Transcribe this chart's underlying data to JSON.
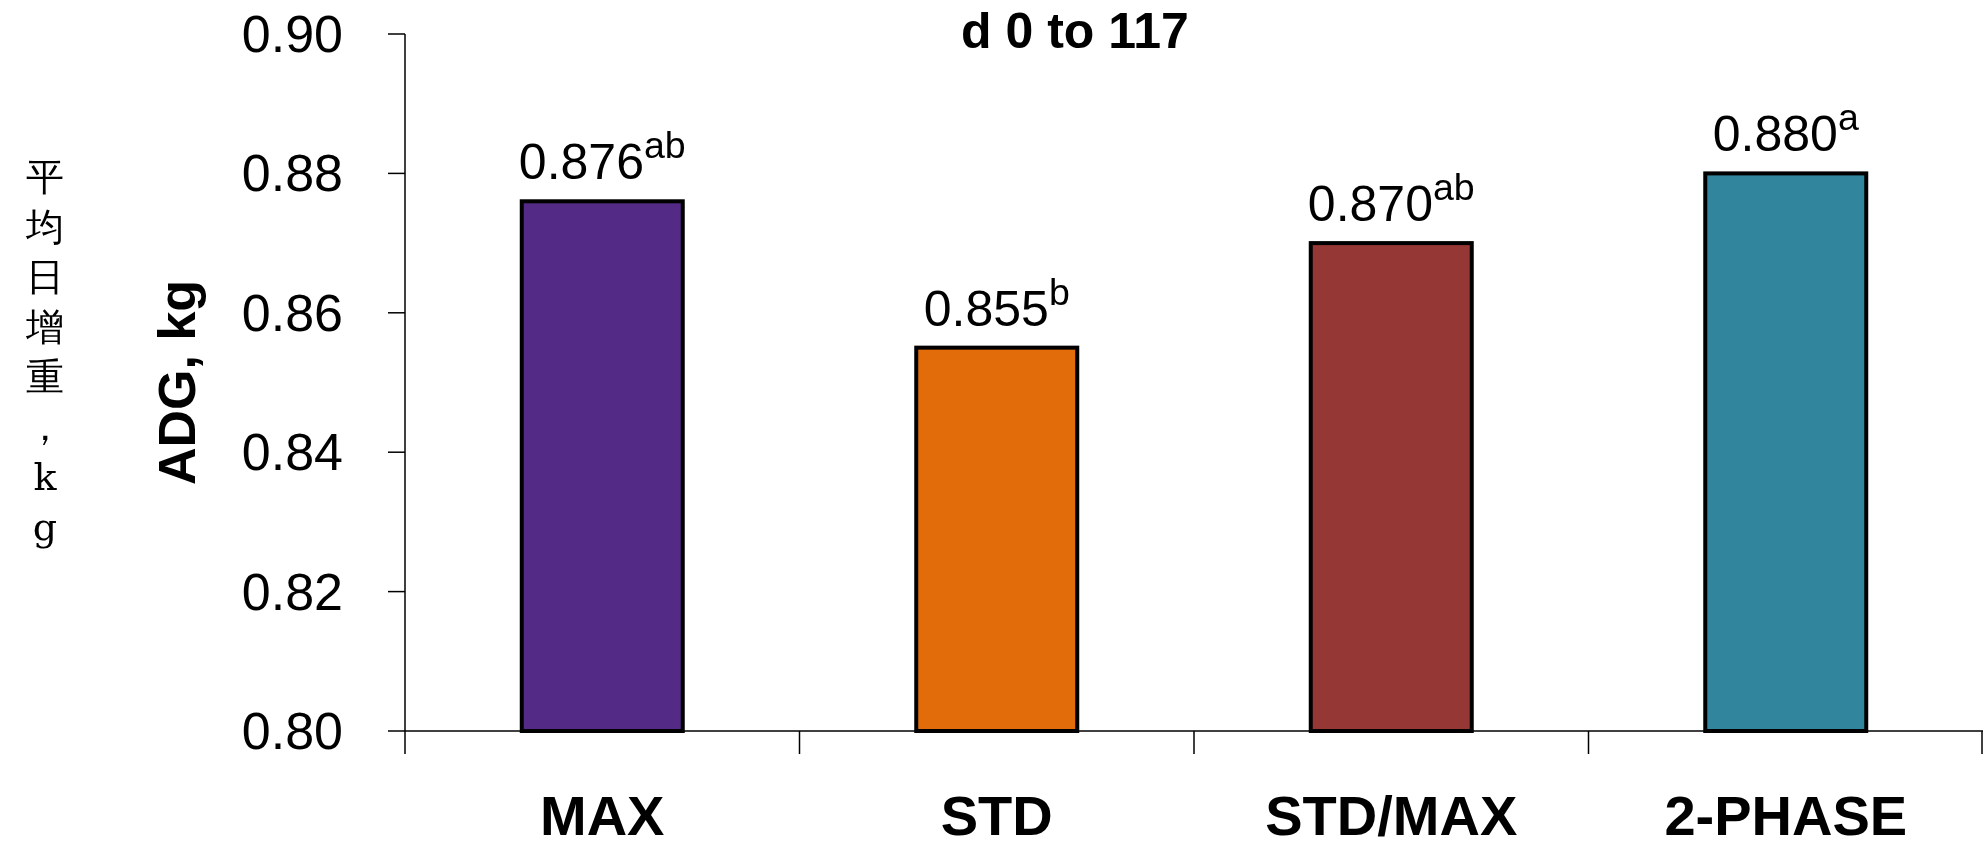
{
  "chart_data": {
    "type": "bar",
    "title": "d 0 to 117",
    "ylabel": "ADG, kg",
    "annotations": [
      "平均日增重，kg"
    ],
    "categories": [
      "MAX",
      "STD",
      "STD/MAX",
      "2-PHASE"
    ],
    "values": [
      0.876,
      0.855,
      0.87,
      0.88
    ],
    "colors": [
      "#532a85",
      "#e36c0a",
      "#953735",
      "#31859c"
    ],
    "value_labels": [
      "0.876$^{ab}$",
      "0.855$^{b}$",
      "0.870$^{ab}$",
      "0.880$^{a}$"
    ],
    "ylim": [
      0.8,
      0.9
    ],
    "yticks": [
      "0.80",
      "0.82",
      "0.84",
      "0.86",
      "0.88",
      "0.90"
    ],
    "grid": false
  }
}
